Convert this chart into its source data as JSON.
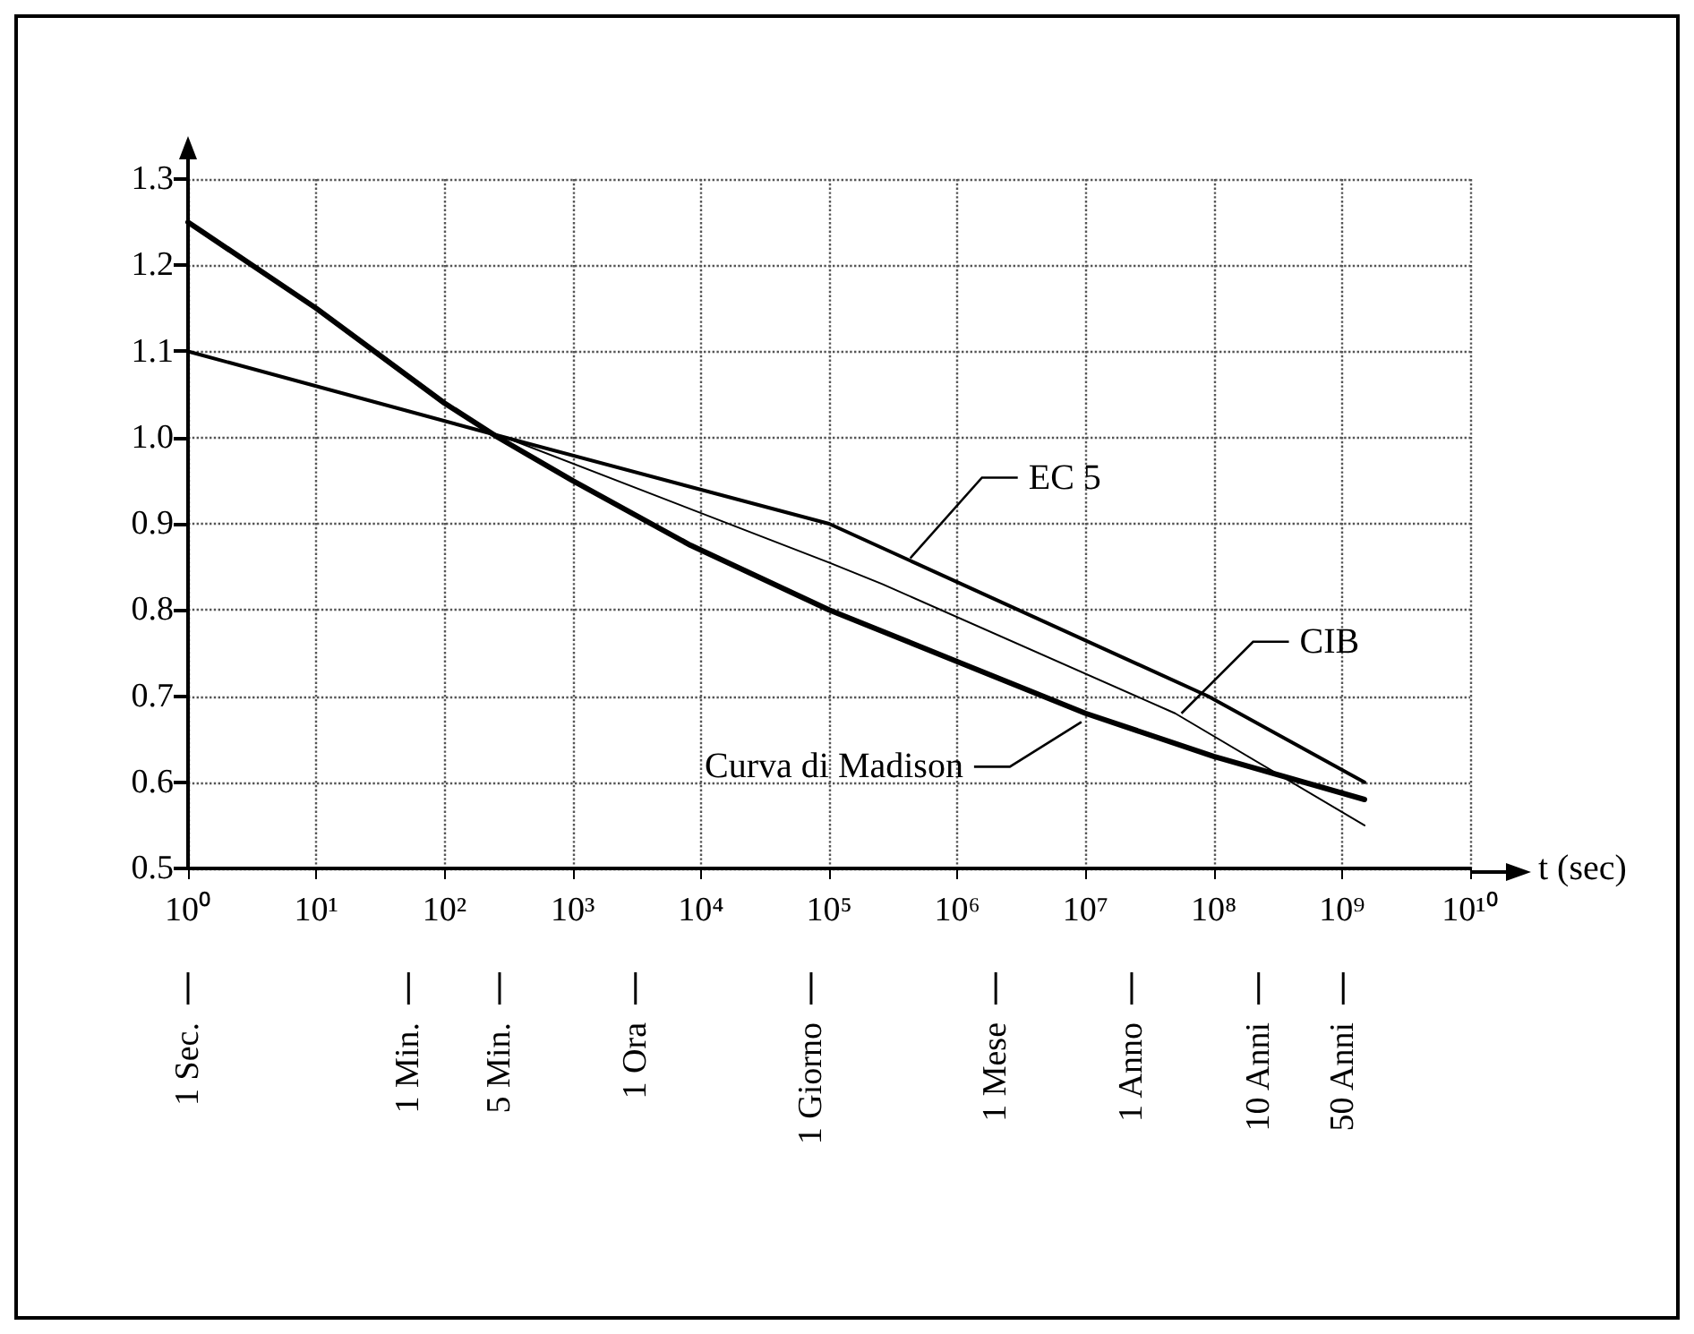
{
  "chart_data": {
    "type": "line",
    "xlabel": "t (sec)",
    "log": "x",
    "grid": true,
    "xlim": [
      1,
      10000000000
    ],
    "xticks": [
      {
        "value": 1,
        "label": "10⁰"
      },
      {
        "value": 10,
        "label": "10¹"
      },
      {
        "value": 100,
        "label": "10²"
      },
      {
        "value": 1000,
        "label": "10³"
      },
      {
        "value": 10000,
        "label": "10⁴"
      },
      {
        "value": 100000,
        "label": "10⁵"
      },
      {
        "value": 1000000,
        "label": "10⁶"
      },
      {
        "value": 10000000,
        "label": "10⁷"
      },
      {
        "value": 100000000,
        "label": "10⁸"
      },
      {
        "value": 1000000000,
        "label": "10⁹"
      },
      {
        "value": 10000000000,
        "label": "10¹⁰"
      }
    ],
    "ylim": [
      0.5,
      1.3
    ],
    "yticks": [
      {
        "value": 0.5,
        "label": "0.5"
      },
      {
        "value": 0.6,
        "label": "0.6"
      },
      {
        "value": 0.7,
        "label": "0.7"
      },
      {
        "value": 0.8,
        "label": "0.8"
      },
      {
        "value": 0.9,
        "label": "0.9"
      },
      {
        "value": 1,
        "label": "1.0"
      },
      {
        "value": 1.1,
        "label": "1.1"
      },
      {
        "value": 1.2,
        "label": "1.2"
      },
      {
        "value": 1.3,
        "label": "1.3"
      }
    ],
    "series": [
      {
        "color": "#000000",
        "x": [
          1,
          10,
          100,
          263,
          1000,
          8300,
          100000,
          1000000,
          10000000,
          100000000,
          1500000000
        ],
        "values": [
          1.25,
          1.15,
          1.04,
          1.0,
          0.95,
          0.875,
          0.8,
          0.74,
          0.68,
          0.63,
          0.58
        ]
      },
      {
        "color": "#000000",
        "x": [
          1,
          300,
          100000,
          90000000,
          1500000000
        ],
        "values": [
          1.1,
          1.0,
          0.9,
          0.7,
          0.6
        ]
      },
      {
        "color": "#000000",
        "x": [
          300,
          100000,
          260000,
          50000000,
          1500000000
        ],
        "values": [
          1.0,
          0.855,
          0.83,
          0.68,
          0.55
        ]
      }
    ],
    "annotations": [
      {
        "text": "EC 5",
        "x": 430000,
        "y": 0.86
      },
      {
        "text": "CIB",
        "x": 56000000,
        "y": 0.68
      },
      {
        "text": "Curva di Madison",
        "x": 9300000,
        "y": 0.67
      },
      "1 Sec.",
      "1 Min.",
      "5 Min.",
      "1 Ora",
      "1 Giorno",
      "1 Mese",
      "1 Anno",
      "10 Anni",
      "50 Anni"
    ]
  }
}
